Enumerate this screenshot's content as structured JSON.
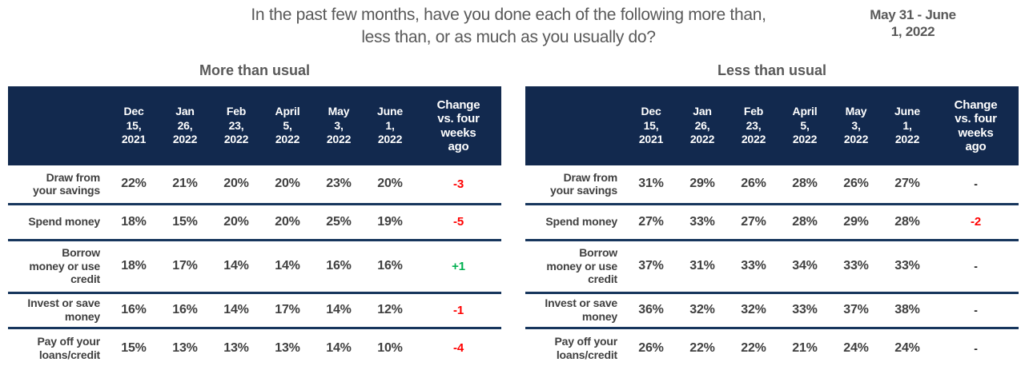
{
  "title": "In the past few months, have you done each of the following more than,\nless than, or as much as you usually do?",
  "date_note": "May 31 - June\n1, 2022",
  "colors": {
    "header_bg": "#12294E",
    "divider": "#17365D",
    "text_gray": "#595959",
    "value_gray": "#404040",
    "positive": "#00B050",
    "negative": "#FF0000",
    "neutral": "#1A1A1A"
  },
  "chart_data": [
    {
      "type": "table",
      "title": "More than usual",
      "columns": [
        "Dec\n15,\n2021",
        "Jan\n26,\n2022",
        "Feb\n23,\n2022",
        "April\n5,\n2022",
        "May\n3,\n2022",
        "June\n1,\n2022",
        "Change\nvs. four\nweeks\nago"
      ],
      "rows": [
        {
          "label": "Draw from\nyour savings",
          "values": [
            "22%",
            "21%",
            "20%",
            "20%",
            "23%",
            "20%"
          ],
          "change": "-3"
        },
        {
          "label": "Spend money",
          "values": [
            "18%",
            "15%",
            "20%",
            "20%",
            "25%",
            "19%"
          ],
          "change": "-5"
        },
        {
          "label": "Borrow\nmoney or use\ncredit",
          "values": [
            "18%",
            "17%",
            "14%",
            "14%",
            "16%",
            "16%"
          ],
          "change": "+1"
        },
        {
          "label": "Invest or save\nmoney",
          "values": [
            "16%",
            "16%",
            "14%",
            "17%",
            "14%",
            "12%"
          ],
          "change": "-1"
        },
        {
          "label": "Pay off your\nloans/credit",
          "values": [
            "15%",
            "13%",
            "13%",
            "13%",
            "14%",
            "10%"
          ],
          "change": "-4"
        }
      ]
    },
    {
      "type": "table",
      "title": "Less than usual",
      "columns": [
        "Dec\n15,\n2021",
        "Jan\n26,\n2022",
        "Feb\n23,\n2022",
        "April\n5,\n2022",
        "May\n3,\n2022",
        "June\n1,\n2022",
        "Change\nvs. four\nweeks\nago"
      ],
      "rows": [
        {
          "label": "Draw from\nyour savings",
          "values": [
            "31%",
            "29%",
            "26%",
            "28%",
            "26%",
            "27%"
          ],
          "change": "-"
        },
        {
          "label": "Spend money",
          "values": [
            "27%",
            "33%",
            "27%",
            "28%",
            "29%",
            "28%"
          ],
          "change": "-2"
        },
        {
          "label": "Borrow\nmoney or use\ncredit",
          "values": [
            "37%",
            "31%",
            "33%",
            "34%",
            "33%",
            "33%"
          ],
          "change": "-"
        },
        {
          "label": "Invest or save\nmoney",
          "values": [
            "36%",
            "32%",
            "32%",
            "33%",
            "37%",
            "38%"
          ],
          "change": "-"
        },
        {
          "label": "Pay off your\nloans/credit",
          "values": [
            "26%",
            "22%",
            "22%",
            "21%",
            "24%",
            "24%"
          ],
          "change": "-"
        }
      ]
    }
  ]
}
